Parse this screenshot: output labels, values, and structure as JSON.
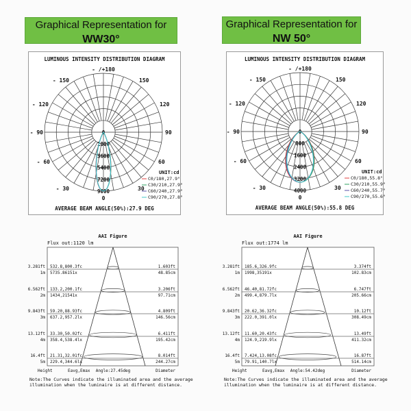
{
  "panels": [
    {
      "header": {
        "line1": "Graphical Representation for",
        "line2": "WW30°"
      },
      "polar": {
        "title": "LUMINOUS INTENSITY DISTRIBUTION DIAGRAM",
        "angle_labels": {
          "top": "- /+180",
          "m150": "- 150",
          "p150": "150",
          "m120": "- 120",
          "p120": "120",
          "m90": "- 90",
          "p90": "90",
          "m60": "- 60",
          "p60": "60",
          "m30": "- 30",
          "p30": "30",
          "bottom": "0"
        },
        "scale_labels": [
          "0",
          "1800",
          "3600",
          "5400",
          "7200",
          "9000"
        ],
        "unit": "UNIT:cd",
        "legend": [
          "C0/180,27.9°",
          "C30/210,27.9°",
          "C60/240,27.9°",
          "C90/270,27.8°"
        ],
        "legend_colors": [
          "#e04040",
          "#2fa060",
          "#5a50a8",
          "#40c8c8"
        ],
        "beam_text": "AVERAGE BEAM ANGLE(50%):27.9 DEG"
      },
      "aai": {
        "title": "AAI  Figure",
        "flux": "Flux out:1120 lm",
        "rows": [
          {
            "ft": "3.281ft",
            "m": "1m",
            "fc": "532.8,800.3fc",
            "lx": "5735.86151x",
            "dft": "1.603ft",
            "dcm": "48.85cm"
          },
          {
            "ft": "6.562ft",
            "m": "2m",
            "fc": "133.2,200.1fc",
            "lx": "1434,21541x",
            "dft": "3.206ft",
            "dcm": "97.71cm"
          },
          {
            "ft": "9.843ft",
            "m": "3m",
            "fc": "59.20,88.93fc",
            "lx": "637.2,957.2lx",
            "dft": "4.809ft",
            "dcm": "146.56cm"
          },
          {
            "ft": "13.12ft",
            "m": "4m",
            "fc": "33.30,50.02fc",
            "lx": "358.4,538.4lx",
            "dft": "6.411ft",
            "dcm": "195.42cm"
          },
          {
            "ft": "16.4ft",
            "m": "5m",
            "fc": "21.31,32.01fc",
            "lx": "229.4,344.6lx",
            "dft": "8.014ft",
            "dcm": "244.27cm"
          }
        ],
        "col_height": "Height",
        "col_eavg": "Eavg,Emax",
        "angle": "Angle:27.45deg",
        "col_diameter": "Diameter",
        "note1": "Note:The Curves indicate the illuminated area and the average",
        "note2": "illumination when the luminaire is at different distance."
      }
    },
    {
      "header": {
        "line1": "Graphical Representation for",
        "line2": "NW 50°"
      },
      "polar": {
        "title": "LUMINOUS INTENSITY DISTRIBUTION DIAGRAM",
        "angle_labels": {
          "top": "- /+180",
          "m150": "- 150",
          "p150": "150",
          "m120": "- 120",
          "p120": "120",
          "m90": "- 90",
          "p90": "90",
          "m60": "- 60",
          "p60": "60",
          "m30": "- 30",
          "p30": "30",
          "bottom": "0"
        },
        "scale_labels": [
          "0",
          "800",
          "1600",
          "2400",
          "3200",
          "4000"
        ],
        "unit": "UNIT:cd",
        "legend": [
          "C0/180,55.8°",
          "C30/210,55.9°",
          "C60/240,55.7°",
          "C90/270,55.6°"
        ],
        "legend_colors": [
          "#e04040",
          "#2fa060",
          "#5a50a8",
          "#40c8c8"
        ],
        "beam_text": "AVERAGE  BEAM  ANGLE(50%):55.8  DEG"
      },
      "aai": {
        "title": "AAI  Figure",
        "flux": "Flux out:1774 lm",
        "rows": [
          {
            "ft": "3.281ft",
            "m": "1m",
            "fc": "185.6,326.9fc",
            "lx": "1998,35191x",
            "dft": "3.374ft",
            "dcm": "102.83cm"
          },
          {
            "ft": "6.562ft",
            "m": "2m",
            "fc": "46.40,81.72fc",
            "lx": "499.4,879.7lx",
            "dft": "6.747ft",
            "dcm": "205.66cm"
          },
          {
            "ft": "9.843ft",
            "m": "3m",
            "fc": "20.62,36.32fc",
            "lx": "222.0,391.0lx",
            "dft": "10.12ft",
            "dcm": "308.49cm"
          },
          {
            "ft": "13.12ft",
            "m": "4m",
            "fc": "11.60,20.43fc",
            "lx": "124.9,219.9lx",
            "dft": "13.49ft",
            "dcm": "411.32cm"
          },
          {
            "ft": "16.4ft",
            "m": "5m",
            "fc": "7.424,13.08fc",
            "lx": "79.91,140.7lx",
            "dft": "16.87ft",
            "dcm": "514.14cm"
          }
        ],
        "col_height": "Height",
        "col_eavg": "Eavg,Emax",
        "angle": "Angle:54.42deg",
        "col_diameter": "Diameter",
        "note1": "Note:The Curves indicate the illuminated area and the average",
        "note2": "illumination when the luminaire is at different distance."
      }
    }
  ]
}
